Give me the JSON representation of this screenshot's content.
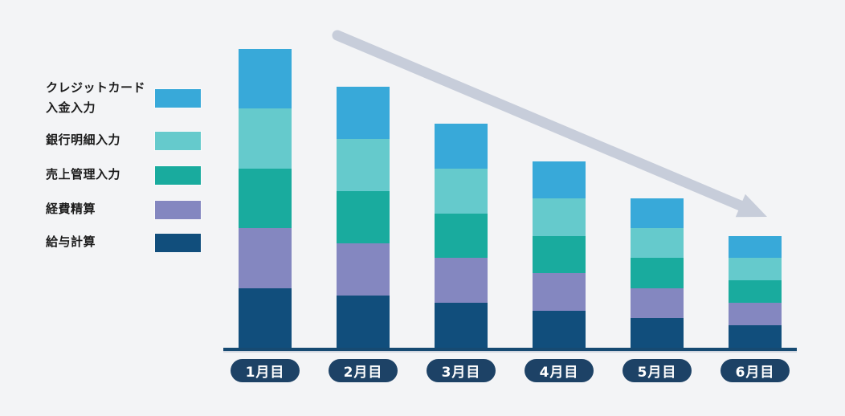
{
  "colors": {
    "background": "#f3f4f6",
    "axis": "#164a72",
    "pill_background": "#1d4266",
    "pill_text": "#ffffff",
    "arrow": "#c7cdda",
    "legend_text": "#1b1b1b"
  },
  "legend": {
    "items": [
      {
        "label": "クレジットカード\n入金入力",
        "color": "#38a9d9"
      },
      {
        "label": "銀行明細入力",
        "color": "#65cacc"
      },
      {
        "label": "売上管理入力",
        "color": "#19ab9e"
      },
      {
        "label": "経費精算",
        "color": "#8487c0"
      },
      {
        "label": "給与計算",
        "color": "#114e7c"
      }
    ]
  },
  "chart_data": {
    "type": "bar",
    "stacked": true,
    "stack_order": "bottom-to-top",
    "categories": [
      "1月目",
      "2月目",
      "3月目",
      "4月目",
      "5月目",
      "6月目"
    ],
    "series": [
      {
        "name": "給与計算",
        "color": "#114e7c",
        "values": [
          20,
          17.5,
          15,
          12.5,
          10,
          7.5
        ]
      },
      {
        "name": "経費精算",
        "color": "#8487c0",
        "values": [
          20,
          17.5,
          15,
          12.5,
          10,
          7.5
        ]
      },
      {
        "name": "売上管理入力",
        "color": "#19ab9e",
        "values": [
          20,
          17.5,
          15,
          12.5,
          10,
          7.5
        ]
      },
      {
        "name": "銀行明細入力",
        "color": "#65cacc",
        "values": [
          20,
          17.5,
          15,
          12.5,
          10,
          7.5
        ]
      },
      {
        "name": "クレジットカード入金入力",
        "color": "#38a9d9",
        "values": [
          20,
          17.5,
          15,
          12.5,
          10,
          7.5
        ]
      }
    ],
    "totals_relative_percent": [
      100,
      87.5,
      75,
      62.5,
      50,
      37.5
    ],
    "title": "",
    "xlabel": "",
    "ylabel": "",
    "value_axis_visible": false,
    "grid": false,
    "legend_position": "left",
    "annotation": "downward trend arrow from upper-left to lower-right"
  }
}
